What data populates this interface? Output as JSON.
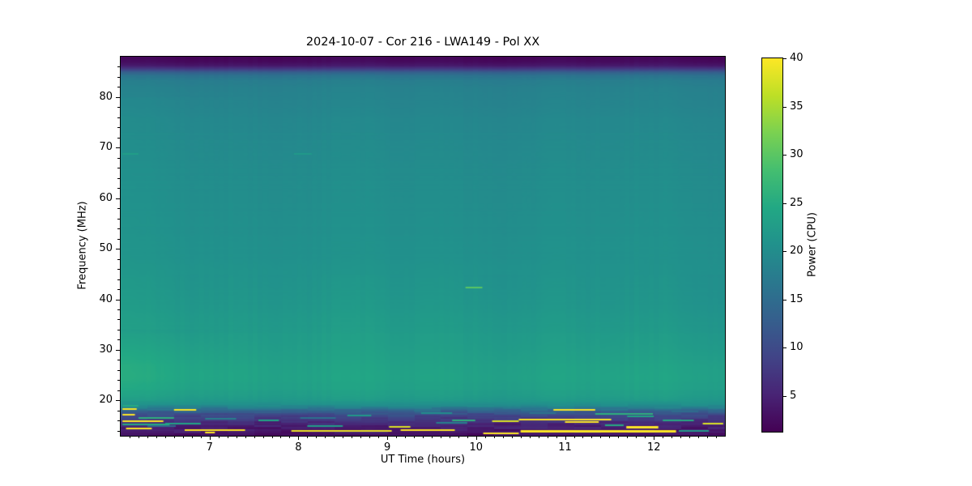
{
  "chart_data": {
    "type": "heatmap",
    "title": "2024-10-07 - Cor 216 - LWA149 - Pol XX",
    "xlabel": "UT Time (hours)",
    "ylabel": "Frequency (MHz)",
    "colorbar_label": "Power (CPU)",
    "colormap": "viridis",
    "x_range": [
      6.0,
      12.8
    ],
    "y_range": [
      13,
      88
    ],
    "color_range": [
      1.3,
      40
    ],
    "x_ticks": [
      7,
      8,
      9,
      10,
      11,
      12
    ],
    "x_minor_step": 0.1,
    "y_ticks": [
      20,
      30,
      40,
      50,
      60,
      70,
      80
    ],
    "y_minor_step": 2,
    "colorbar_ticks": [
      5,
      10,
      15,
      20,
      25,
      30,
      35,
      40
    ],
    "background_freq_profile": [
      [
        88,
        1.8
      ],
      [
        87,
        2.5
      ],
      [
        86.3,
        4
      ],
      [
        85.6,
        8
      ],
      [
        85,
        13
      ],
      [
        84.3,
        16
      ],
      [
        83.5,
        17.5
      ],
      [
        82,
        18.3
      ],
      [
        80,
        18.6
      ],
      [
        75,
        19.2
      ],
      [
        70,
        19.6
      ],
      [
        65,
        19.9
      ],
      [
        60,
        20.1
      ],
      [
        55,
        20.3
      ],
      [
        50,
        20.6
      ],
      [
        45,
        21.0
      ],
      [
        40,
        21.6
      ],
      [
        36,
        22.1
      ],
      [
        32,
        22.6
      ],
      [
        28,
        23.2
      ],
      [
        25,
        23.7
      ],
      [
        22.5,
        23.3
      ],
      [
        21,
        22.6
      ],
      [
        20,
        21.8
      ],
      [
        19.3,
        20.5
      ],
      [
        18.6,
        17.5
      ],
      [
        18,
        13.5
      ],
      [
        17.3,
        10.5
      ],
      [
        16.5,
        8
      ],
      [
        15.7,
        6
      ],
      [
        15,
        4.8
      ],
      [
        14.2,
        4.0
      ],
      [
        13.5,
        3.4
      ],
      [
        13,
        3.2
      ]
    ],
    "rfi_streaks": [
      [
        6.02,
        6.2,
        18.9,
        25,
        2
      ],
      [
        6.02,
        6.18,
        18.3,
        40,
        2
      ],
      [
        6.6,
        6.85,
        18.05,
        40,
        2
      ],
      [
        6.02,
        6.16,
        17.2,
        40,
        2
      ],
      [
        6.2,
        6.6,
        16.5,
        26,
        2
      ],
      [
        6.02,
        6.48,
        15.9,
        40,
        2
      ],
      [
        6.02,
        6.55,
        15.2,
        25,
        2
      ],
      [
        6.06,
        6.35,
        14.5,
        40,
        2
      ],
      [
        6.72,
        7.4,
        14.1,
        40,
        2
      ],
      [
        6.5,
        6.9,
        15.35,
        24,
        2
      ],
      [
        6.3,
        6.62,
        14.85,
        14,
        2
      ],
      [
        6.95,
        7.3,
        16.3,
        18,
        2
      ],
      [
        7.55,
        7.78,
        16.0,
        24,
        2
      ],
      [
        7.92,
        9.05,
        13.9,
        39,
        2
      ],
      [
        8.02,
        8.42,
        16.6,
        16,
        2
      ],
      [
        8.55,
        8.82,
        17.0,
        22,
        2
      ],
      [
        8.1,
        8.5,
        15.0,
        23,
        2
      ],
      [
        9.38,
        9.73,
        17.55,
        20,
        2
      ],
      [
        9.73,
        9.99,
        16.0,
        26,
        2
      ],
      [
        9.02,
        9.26,
        14.8,
        38,
        2
      ],
      [
        9.15,
        9.76,
        14.05,
        40,
        2
      ],
      [
        9.55,
        9.9,
        15.5,
        18,
        2
      ],
      [
        9.5,
        10.3,
        18.5,
        16,
        2
      ],
      [
        10.18,
        10.48,
        15.9,
        38,
        2
      ],
      [
        10.08,
        10.48,
        13.45,
        40,
        2
      ],
      [
        9.3,
        9.6,
        18.0,
        16,
        2
      ],
      [
        10.87,
        11.34,
        18.1,
        40,
        2
      ],
      [
        11.34,
        11.99,
        17.3,
        26,
        2
      ],
      [
        10.48,
        11.52,
        16.25,
        40,
        2
      ],
      [
        11.0,
        11.38,
        15.8,
        40,
        2
      ],
      [
        11.69,
        12.05,
        14.8,
        40,
        3
      ],
      [
        10.5,
        12.25,
        13.9,
        40,
        3
      ],
      [
        12.28,
        12.62,
        13.9,
        22,
        2
      ],
      [
        11.45,
        11.66,
        15.1,
        25,
        2
      ],
      [
        11.7,
        12.0,
        16.8,
        24,
        2
      ],
      [
        12.1,
        12.45,
        16.0,
        25,
        2
      ],
      [
        12.55,
        12.78,
        15.4,
        38,
        2
      ],
      [
        10.6,
        10.9,
        17.45,
        16,
        2
      ],
      [
        12.2,
        12.5,
        17.8,
        15,
        2
      ],
      [
        6.95,
        7.06,
        13.6,
        40,
        2
      ],
      [
        7.3,
        7.9,
        17.8,
        13,
        2
      ],
      [
        6.02,
        6.2,
        68.8,
        23,
        2
      ],
      [
        7.95,
        8.15,
        68.8,
        22,
        2
      ]
    ],
    "burst": {
      "t0": 9.88,
      "t1": 10.07,
      "f": 42.4,
      "v": 30
    }
  }
}
